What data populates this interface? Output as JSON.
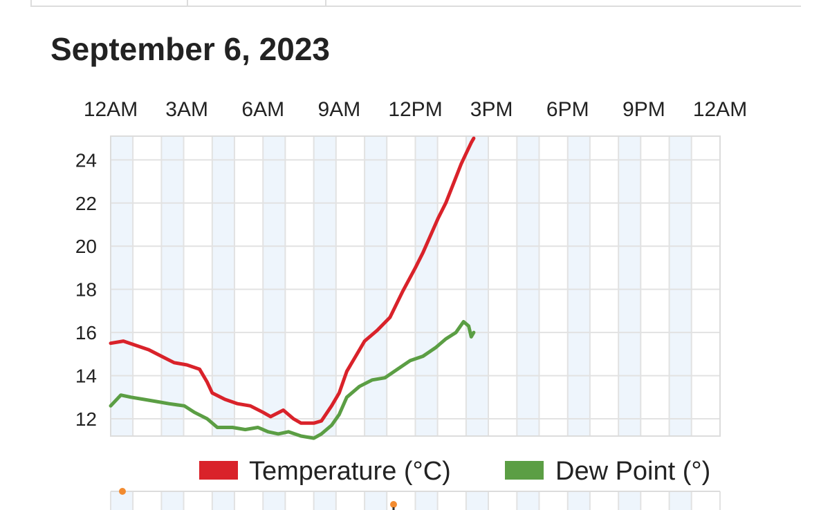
{
  "page": {
    "date_heading": "September 6, 2023"
  },
  "colors": {
    "temperature": "#d9222a",
    "dew_point": "#5b9e44",
    "band": "#eef5fc",
    "grid": "#e2e2e2",
    "marker": "#f28b30"
  },
  "chart_data": {
    "type": "line",
    "title": "",
    "xlabel": "",
    "ylabel": "",
    "x_unit": "hours since midnight",
    "xlim": [
      0,
      24
    ],
    "ylim": [
      11.2,
      25.1
    ],
    "x_ticks": [
      {
        "x": 0,
        "label": "12AM"
      },
      {
        "x": 3,
        "label": "3AM"
      },
      {
        "x": 6,
        "label": "6AM"
      },
      {
        "x": 9,
        "label": "9AM"
      },
      {
        "x": 12,
        "label": "12PM"
      },
      {
        "x": 15,
        "label": "3PM"
      },
      {
        "x": 18,
        "label": "6PM"
      },
      {
        "x": 21,
        "label": "9PM"
      },
      {
        "x": 24,
        "label": "12AM"
      }
    ],
    "y_ticks": [
      12,
      14,
      16,
      18,
      20,
      22,
      24
    ],
    "grid": true,
    "legend_position": "bottom-right",
    "series": [
      {
        "name": "Temperature (°C)",
        "points": [
          [
            0.0,
            15.5
          ],
          [
            0.5,
            15.6
          ],
          [
            1.0,
            15.4
          ],
          [
            1.5,
            15.2
          ],
          [
            2.0,
            14.9
          ],
          [
            2.5,
            14.6
          ],
          [
            3.0,
            14.5
          ],
          [
            3.5,
            14.3
          ],
          [
            3.8,
            13.7
          ],
          [
            4.0,
            13.2
          ],
          [
            4.5,
            12.9
          ],
          [
            5.0,
            12.7
          ],
          [
            5.5,
            12.6
          ],
          [
            6.0,
            12.3
          ],
          [
            6.3,
            12.1
          ],
          [
            6.8,
            12.4
          ],
          [
            7.2,
            12.0
          ],
          [
            7.5,
            11.8
          ],
          [
            8.0,
            11.8
          ],
          [
            8.3,
            11.9
          ],
          [
            8.7,
            12.6
          ],
          [
            9.0,
            13.2
          ],
          [
            9.3,
            14.2
          ],
          [
            9.7,
            15.0
          ],
          [
            10.0,
            15.6
          ],
          [
            10.5,
            16.1
          ],
          [
            11.0,
            16.7
          ],
          [
            11.5,
            17.9
          ],
          [
            12.0,
            19.0
          ],
          [
            12.3,
            19.7
          ],
          [
            12.6,
            20.5
          ],
          [
            12.9,
            21.3
          ],
          [
            13.2,
            22.0
          ],
          [
            13.5,
            22.9
          ],
          [
            13.8,
            23.8
          ],
          [
            14.0,
            24.3
          ],
          [
            14.2,
            24.8
          ],
          [
            14.3,
            25.0
          ]
        ]
      },
      {
        "name": "Dew Point (°)",
        "points": [
          [
            0.0,
            12.6
          ],
          [
            0.4,
            13.1
          ],
          [
            0.8,
            13.0
          ],
          [
            1.3,
            12.9
          ],
          [
            1.8,
            12.8
          ],
          [
            2.3,
            12.7
          ],
          [
            2.9,
            12.6
          ],
          [
            3.3,
            12.3
          ],
          [
            3.8,
            12.0
          ],
          [
            4.2,
            11.6
          ],
          [
            4.8,
            11.6
          ],
          [
            5.3,
            11.5
          ],
          [
            5.8,
            11.6
          ],
          [
            6.2,
            11.4
          ],
          [
            6.6,
            11.3
          ],
          [
            7.0,
            11.4
          ],
          [
            7.5,
            11.2
          ],
          [
            8.0,
            11.1
          ],
          [
            8.3,
            11.3
          ],
          [
            8.7,
            11.7
          ],
          [
            9.0,
            12.2
          ],
          [
            9.3,
            13.0
          ],
          [
            9.8,
            13.5
          ],
          [
            10.3,
            13.8
          ],
          [
            10.8,
            13.9
          ],
          [
            11.3,
            14.3
          ],
          [
            11.8,
            14.7
          ],
          [
            12.3,
            14.9
          ],
          [
            12.8,
            15.3
          ],
          [
            13.2,
            15.7
          ],
          [
            13.6,
            16.0
          ],
          [
            13.9,
            16.5
          ],
          [
            14.1,
            16.3
          ],
          [
            14.2,
            15.8
          ],
          [
            14.3,
            16.0
          ]
        ]
      }
    ],
    "shaded_bands_x": [
      [
        0.0,
        0.875
      ],
      [
        2.0,
        2.875
      ],
      [
        4.0,
        4.875
      ],
      [
        6.0,
        6.875
      ],
      [
        8.0,
        8.875
      ],
      [
        10.0,
        10.875
      ],
      [
        12.0,
        12.875
      ],
      [
        14.0,
        14.875
      ],
      [
        16.0,
        16.875
      ],
      [
        18.0,
        18.875
      ],
      [
        20.0,
        20.875
      ],
      [
        22.0,
        22.875
      ]
    ],
    "vertical_grid_x": [
      0,
      0.875,
      2,
      2.875,
      4,
      4.875,
      6,
      6.875,
      8,
      8.875,
      10,
      10.875,
      12,
      12.875,
      14,
      14.875,
      16,
      16.875,
      18,
      18.875,
      20,
      20.875,
      22,
      22.875,
      24
    ]
  }
}
